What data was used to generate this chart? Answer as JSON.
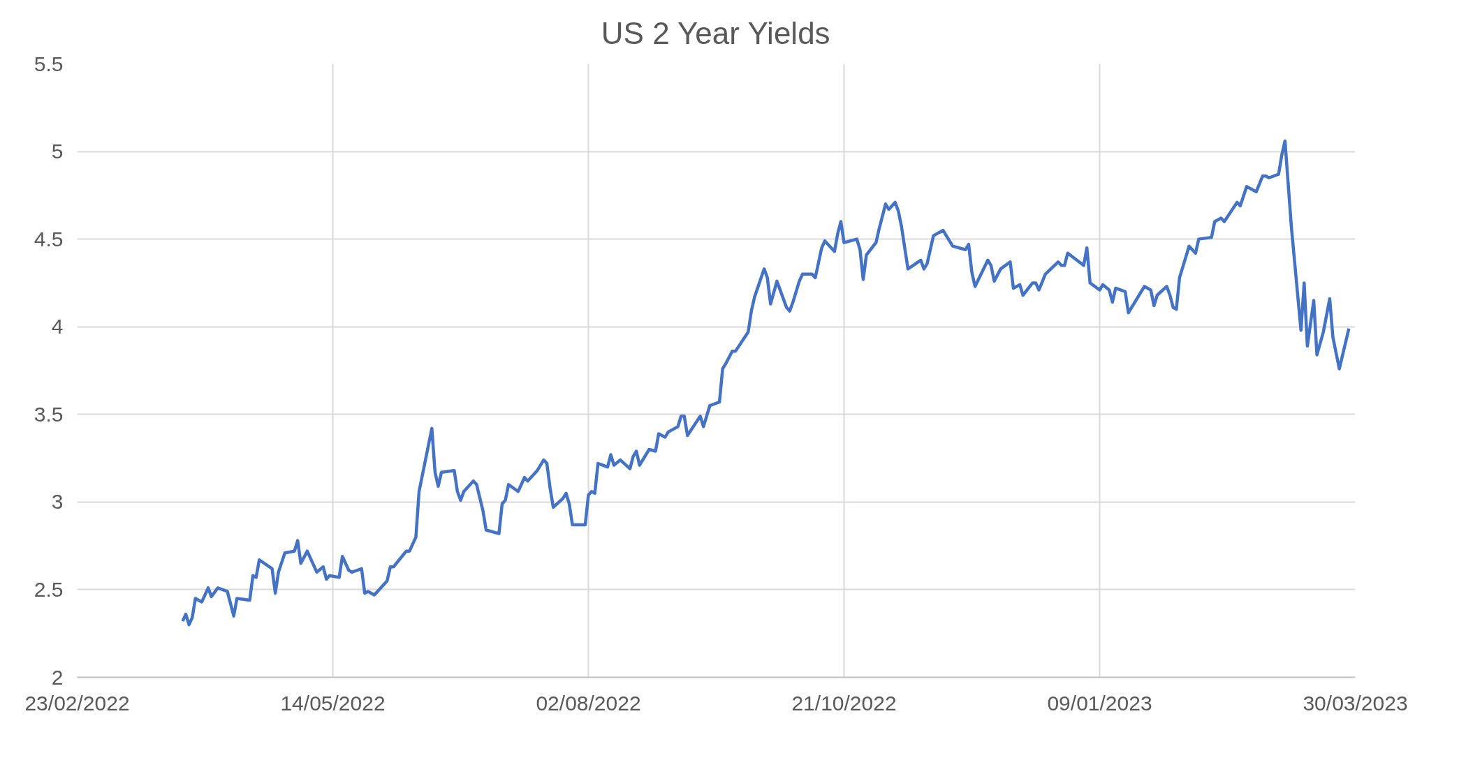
{
  "chart_data": {
    "type": "line",
    "title": "US 2 Year Yields",
    "grid": true,
    "marker": "none",
    "line_style": "solid",
    "xlim": [
      "2022-02-23",
      "2023-03-30"
    ],
    "xticks": [
      {
        "value": "2022-02-23",
        "label": "23/02/2022"
      },
      {
        "value": "2022-05-14",
        "label": "14/05/2022"
      },
      {
        "value": "2022-08-02",
        "label": "02/08/2022"
      },
      {
        "value": "2022-10-21",
        "label": "21/10/2022"
      },
      {
        "value": "2023-01-09",
        "label": "09/01/2023"
      },
      {
        "value": "2023-03-30",
        "label": "30/03/2023"
      }
    ],
    "ylim": [
      2,
      5.5
    ],
    "yticks": [
      2,
      2.5,
      3,
      3.5,
      4,
      4.5,
      5,
      5.5
    ],
    "series": [
      {
        "color": "#4472c4",
        "x": [
          "2022-03-28",
          "2022-03-29",
          "2022-03-30",
          "2022-03-31",
          "2022-04-01",
          "2022-04-03",
          "2022-04-05",
          "2022-04-06",
          "2022-04-08",
          "2022-04-11",
          "2022-04-13",
          "2022-04-14",
          "2022-04-18",
          "2022-04-19",
          "2022-04-20",
          "2022-04-21",
          "2022-04-25",
          "2022-04-26",
          "2022-04-27",
          "2022-04-29",
          "2022-05-02",
          "2022-05-03",
          "2022-05-04",
          "2022-05-06",
          "2022-05-09",
          "2022-05-11",
          "2022-05-12",
          "2022-05-13",
          "2022-05-16",
          "2022-05-17",
          "2022-05-19",
          "2022-05-20",
          "2022-05-23",
          "2022-05-24",
          "2022-05-25",
          "2022-05-27",
          "2022-05-31",
          "2022-06-01",
          "2022-06-02",
          "2022-06-06",
          "2022-06-07",
          "2022-06-08",
          "2022-06-09",
          "2022-06-10",
          "2022-06-14",
          "2022-06-15",
          "2022-06-16",
          "2022-06-17",
          "2022-06-21",
          "2022-06-22",
          "2022-06-23",
          "2022-06-24",
          "2022-06-27",
          "2022-06-28",
          "2022-06-30",
          "2022-07-01",
          "2022-07-05",
          "2022-07-06",
          "2022-07-07",
          "2022-07-08",
          "2022-07-11",
          "2022-07-13",
          "2022-07-14",
          "2022-07-17",
          "2022-07-19",
          "2022-07-20",
          "2022-07-21",
          "2022-07-22",
          "2022-07-25",
          "2022-07-26",
          "2022-07-27",
          "2022-07-28",
          "2022-08-01",
          "2022-08-02",
          "2022-08-03",
          "2022-08-04",
          "2022-08-05",
          "2022-08-08",
          "2022-08-09",
          "2022-08-10",
          "2022-08-12",
          "2022-08-15",
          "2022-08-16",
          "2022-08-17",
          "2022-08-18",
          "2022-08-21",
          "2022-08-23",
          "2022-08-24",
          "2022-08-26",
          "2022-08-27",
          "2022-08-30",
          "2022-08-31",
          "2022-09-01",
          "2022-09-02",
          "2022-09-06",
          "2022-09-07",
          "2022-09-09",
          "2022-09-12",
          "2022-09-13",
          "2022-09-14",
          "2022-09-16",
          "2022-09-17",
          "2022-09-21",
          "2022-09-22",
          "2022-09-23",
          "2022-09-26",
          "2022-09-27",
          "2022-09-28",
          "2022-09-30",
          "2022-10-03",
          "2022-10-04",
          "2022-10-05",
          "2022-10-07",
          "2022-10-08",
          "2022-10-11",
          "2022-10-12",
          "2022-10-14",
          "2022-10-15",
          "2022-10-18",
          "2022-10-19",
          "2022-10-20",
          "2022-10-21",
          "2022-10-25",
          "2022-10-26",
          "2022-10-27",
          "2022-10-28",
          "2022-10-31",
          "2022-11-01",
          "2022-11-03",
          "2022-11-04",
          "2022-11-06",
          "2022-11-07",
          "2022-11-08",
          "2022-11-10",
          "2022-11-14",
          "2022-11-15",
          "2022-11-16",
          "2022-11-18",
          "2022-11-21",
          "2022-11-23",
          "2022-11-24",
          "2022-11-28",
          "2022-11-29",
          "2022-11-30",
          "2022-12-01",
          "2022-12-05",
          "2022-12-06",
          "2022-12-07",
          "2022-12-09",
          "2022-12-12",
          "2022-12-13",
          "2022-12-15",
          "2022-12-16",
          "2022-12-19",
          "2022-12-20",
          "2022-12-21",
          "2022-12-23",
          "2022-12-27",
          "2022-12-28",
          "2022-12-29",
          "2022-12-30",
          "2023-01-04",
          "2023-01-05",
          "2023-01-06",
          "2023-01-09",
          "2023-01-10",
          "2023-01-12",
          "2023-01-13",
          "2023-01-14",
          "2023-01-17",
          "2023-01-18",
          "2023-01-21",
          "2023-01-23",
          "2023-01-25",
          "2023-01-26",
          "2023-01-27",
          "2023-01-30",
          "2023-01-31",
          "2023-02-01",
          "2023-02-02",
          "2023-02-03",
          "2023-02-06",
          "2023-02-08",
          "2023-02-09",
          "2023-02-13",
          "2023-02-14",
          "2023-02-16",
          "2023-02-17",
          "2023-02-21",
          "2023-02-22",
          "2023-02-24",
          "2023-02-27",
          "2023-03-01",
          "2023-03-02",
          "2023-03-03",
          "2023-03-06",
          "2023-03-07",
          "2023-03-08",
          "2023-03-10",
          "2023-03-13",
          "2023-03-14",
          "2023-03-15",
          "2023-03-17",
          "2023-03-18",
          "2023-03-20",
          "2023-03-22",
          "2023-03-23",
          "2023-03-25",
          "2023-03-28"
        ],
        "values": [
          2.32,
          2.36,
          2.3,
          2.34,
          2.45,
          2.43,
          2.51,
          2.46,
          2.51,
          2.49,
          2.35,
          2.45,
          2.44,
          2.58,
          2.57,
          2.67,
          2.62,
          2.48,
          2.6,
          2.71,
          2.72,
          2.78,
          2.65,
          2.72,
          2.6,
          2.63,
          2.56,
          2.58,
          2.57,
          2.69,
          2.61,
          2.6,
          2.62,
          2.48,
          2.49,
          2.47,
          2.55,
          2.63,
          2.63,
          2.72,
          2.72,
          2.76,
          2.8,
          3.06,
          3.42,
          3.17,
          3.09,
          3.17,
          3.18,
          3.06,
          3.01,
          3.06,
          3.12,
          3.1,
          2.95,
          2.84,
          2.82,
          2.99,
          3.01,
          3.1,
          3.06,
          3.14,
          3.12,
          3.18,
          3.24,
          3.22,
          3.08,
          2.97,
          3.02,
          3.05,
          2.99,
          2.87,
          2.87,
          3.04,
          3.06,
          3.05,
          3.22,
          3.2,
          3.27,
          3.21,
          3.24,
          3.19,
          3.26,
          3.29,
          3.21,
          3.3,
          3.29,
          3.39,
          3.37,
          3.4,
          3.43,
          3.49,
          3.49,
          3.38,
          3.49,
          3.43,
          3.55,
          3.57,
          3.76,
          3.79,
          3.86,
          3.86,
          3.97,
          4.09,
          4.17,
          4.33,
          4.28,
          4.13,
          4.26,
          4.11,
          4.09,
          4.14,
          4.26,
          4.3,
          4.3,
          4.28,
          4.45,
          4.49,
          4.43,
          4.53,
          4.6,
          4.48,
          4.5,
          4.44,
          4.27,
          4.41,
          4.48,
          4.56,
          4.7,
          4.67,
          4.71,
          4.66,
          4.57,
          4.33,
          4.38,
          4.33,
          4.36,
          4.52,
          4.55,
          4.49,
          4.46,
          4.44,
          4.47,
          4.31,
          4.23,
          4.38,
          4.35,
          4.26,
          4.33,
          4.37,
          4.22,
          4.24,
          4.18,
          4.25,
          4.25,
          4.21,
          4.3,
          4.37,
          4.35,
          4.35,
          4.42,
          4.35,
          4.45,
          4.25,
          4.21,
          4.24,
          4.21,
          4.14,
          4.22,
          4.2,
          4.08,
          4.17,
          4.23,
          4.21,
          4.12,
          4.18,
          4.23,
          4.18,
          4.11,
          4.1,
          4.28,
          4.46,
          4.42,
          4.5,
          4.51,
          4.6,
          4.62,
          4.6,
          4.71,
          4.69,
          4.8,
          4.77,
          4.86,
          4.86,
          4.85,
          4.87,
          4.98,
          5.06,
          4.57,
          3.98,
          4.25,
          3.89,
          4.15,
          3.84,
          3.97,
          4.16,
          3.94,
          3.76,
          3.99
        ]
      }
    ]
  }
}
